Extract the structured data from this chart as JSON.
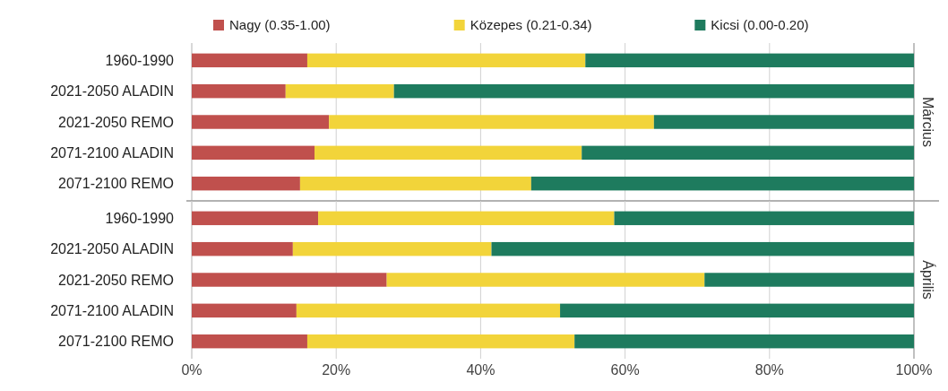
{
  "chart_data": [
    {
      "type": "bar",
      "title": "Március",
      "orientation": "horizontal",
      "stacked": true,
      "categories": [
        "1960-1990",
        "2021-2050 ALADIN",
        "2021-2050 REMO",
        "2071-2100 ALADIN",
        "2071-2100 REMO"
      ],
      "series": [
        {
          "name": "Nagy (0.35-1.00)",
          "color": "#c0504d",
          "values": [
            16,
            13,
            19,
            17,
            15
          ]
        },
        {
          "name": "Közepes (0.21-0.34)",
          "color": "#f2d43a",
          "values": [
            38.5,
            15,
            45,
            37,
            32
          ]
        },
        {
          "name": "Kicsi (0.00-0.20)",
          "color": "#1e7b5e",
          "values": [
            45.5,
            72,
            36,
            46,
            53
          ]
        }
      ],
      "xlim": [
        0,
        100
      ],
      "xticks": [
        {
          "value": 0,
          "label": null
        },
        {
          "value": 20,
          "label": null
        },
        {
          "value": 40,
          "label": null
        },
        {
          "value": 60,
          "label": null
        },
        {
          "value": 80,
          "label": null
        },
        {
          "value": 100,
          "label": null
        }
      ],
      "grid": "x",
      "legend": "top",
      "tick_labels": "y"
    },
    {
      "type": "bar",
      "title": "Április",
      "orientation": "horizontal",
      "stacked": true,
      "categories": [
        "1960-1990",
        "2021-2050 ALADIN",
        "2021-2050 REMO",
        "2071-2100 ALADIN",
        "2071-2100 REMO"
      ],
      "series": [
        {
          "color": "#c0504d",
          "values": [
            17.5,
            14,
            27,
            14.5,
            16
          ]
        },
        {
          "color": "#f2d43a",
          "values": [
            41,
            27.5,
            44,
            36.5,
            37
          ]
        },
        {
          "color": "#1e7b5e",
          "values": [
            41.5,
            58.5,
            29,
            49,
            47
          ]
        }
      ],
      "xlim": [
        0,
        100
      ],
      "xticks": [
        {
          "value": 0,
          "label": "0%"
        },
        {
          "value": 20,
          "label": "20%"
        },
        {
          "value": 40,
          "label": "40%"
        },
        {
          "value": 60,
          "label": "60%"
        },
        {
          "value": 80,
          "label": "80%"
        },
        {
          "value": 100,
          "label": "100%"
        }
      ],
      "grid": "x"
    }
  ]
}
